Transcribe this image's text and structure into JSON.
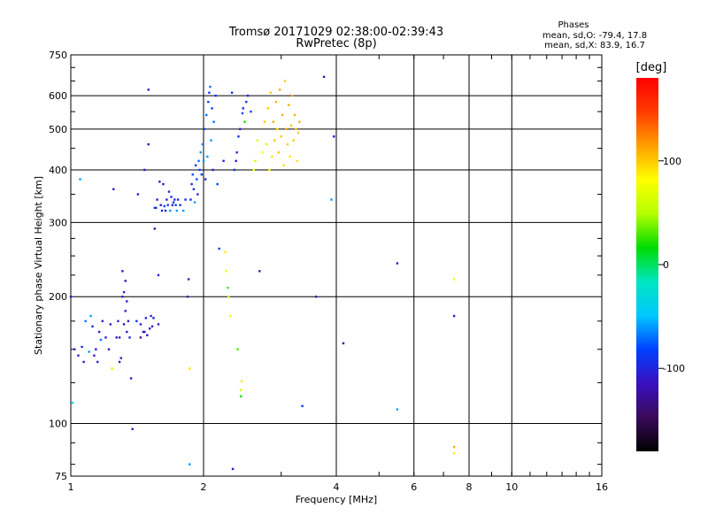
{
  "chart_data": {
    "type": "scatter",
    "title": "Tromsø 20171029 02:38:00-02:39:43",
    "subtitle": "RwPretec (8p)",
    "xlabel": "Frequency [MHz]",
    "ylabel": "Stationary phase Virtual Height [km]",
    "x_scale": "log",
    "y_scale": "log",
    "xlim": [
      1,
      16
    ],
    "ylim": [
      75,
      750
    ],
    "x_ticks": [
      1,
      2,
      4,
      6,
      8,
      10,
      16
    ],
    "y_ticks": [
      75,
      100,
      200,
      300,
      400,
      500,
      600,
      750
    ],
    "x_major_grid": [
      2,
      4,
      6,
      8,
      10
    ],
    "y_major_grid": [
      100,
      200,
      300,
      400,
      500,
      600
    ],
    "grid": true,
    "stats": {
      "title": "Phases",
      "line_o": "mean, sd,O: -79.4, 17.8",
      "line_x": "mean, sd,X: 83.9, 16.7"
    },
    "colorbar": {
      "label": "[deg]",
      "range": [
        -180,
        180
      ],
      "ticks": [
        100,
        0,
        -100
      ],
      "stops": [
        "#000000",
        "#3a0a5a",
        "#3a10c0",
        "#0040ff",
        "#00c8ff",
        "#00e6c0",
        "#00dc00",
        "#b4ff00",
        "#ffff00",
        "#ffa000",
        "#ff3c00",
        "#ff0000"
      ]
    },
    "series": [
      {
        "color_by": "phase",
        "points": [
          [
            1.0,
            200,
            -110
          ],
          [
            1.01,
            112,
            -30
          ],
          [
            1.02,
            150,
            -105
          ],
          [
            1.04,
            145,
            -110
          ],
          [
            1.06,
            152,
            -100
          ],
          [
            1.07,
            140,
            -110
          ],
          [
            1.05,
            380,
            -60
          ],
          [
            1.08,
            175,
            -70
          ],
          [
            1.1,
            148,
            -60
          ],
          [
            1.11,
            180,
            -60
          ],
          [
            1.12,
            170,
            -100
          ],
          [
            1.13,
            145,
            -110
          ],
          [
            1.14,
            150,
            -105
          ],
          [
            1.15,
            140,
            -100
          ],
          [
            1.16,
            165,
            -110
          ],
          [
            1.17,
            158,
            -70
          ],
          [
            1.18,
            175,
            -110
          ],
          [
            1.2,
            160,
            -105
          ],
          [
            1.22,
            150,
            -110
          ],
          [
            1.23,
            172,
            -110
          ],
          [
            1.24,
            135,
            60
          ],
          [
            1.25,
            360,
            -110
          ],
          [
            1.27,
            160,
            -110
          ],
          [
            1.28,
            175,
            -100
          ],
          [
            1.29,
            160,
            -110
          ],
          [
            1.29,
            140,
            -110
          ],
          [
            1.3,
            143,
            -105
          ],
          [
            1.31,
            200,
            -110
          ],
          [
            1.31,
            230,
            -105
          ],
          [
            1.32,
            205,
            -100
          ],
          [
            1.32,
            172,
            -110
          ],
          [
            1.33,
            185,
            -100
          ],
          [
            1.33,
            218,
            -110
          ],
          [
            1.34,
            165,
            -110
          ],
          [
            1.34,
            195,
            -105
          ],
          [
            1.35,
            175,
            -110
          ],
          [
            1.36,
            160,
            -100
          ],
          [
            1.37,
            128,
            -110
          ],
          [
            1.38,
            97,
            -120
          ],
          [
            1.41,
            175,
            -90
          ],
          [
            1.42,
            350,
            -110
          ],
          [
            1.44,
            160,
            -110
          ],
          [
            1.44,
            172,
            -105
          ],
          [
            1.46,
            165,
            -110
          ],
          [
            1.47,
            400,
            -105
          ],
          [
            1.47,
            165,
            -105
          ],
          [
            1.48,
            178,
            -100
          ],
          [
            1.49,
            162,
            -110
          ],
          [
            1.5,
            460,
            -120
          ],
          [
            1.5,
            620,
            -110
          ],
          [
            1.51,
            168,
            -110
          ],
          [
            1.52,
            180,
            -100
          ],
          [
            1.53,
            170,
            -110
          ],
          [
            1.54,
            178,
            -105
          ],
          [
            1.55,
            290,
            -120
          ],
          [
            1.55,
            325,
            -80
          ],
          [
            1.56,
            325,
            -100
          ],
          [
            1.57,
            340,
            -110
          ],
          [
            1.58,
            172,
            -110
          ],
          [
            1.58,
            225,
            -105
          ],
          [
            1.59,
            375,
            -110
          ],
          [
            1.6,
            330,
            -110
          ],
          [
            1.61,
            320,
            -100
          ],
          [
            1.62,
            370,
            -110
          ],
          [
            1.63,
            328,
            -80
          ],
          [
            1.64,
            320,
            -100
          ],
          [
            1.65,
            340,
            -110
          ],
          [
            1.66,
            330,
            -90
          ],
          [
            1.67,
            355,
            -100
          ],
          [
            1.68,
            320,
            -60
          ],
          [
            1.69,
            345,
            -100
          ],
          [
            1.7,
            330,
            -110
          ],
          [
            1.71,
            335,
            -90
          ],
          [
            1.72,
            340,
            -100
          ],
          [
            1.73,
            330,
            -80
          ],
          [
            1.74,
            320,
            -60
          ],
          [
            1.75,
            340,
            -100
          ],
          [
            1.77,
            330,
            -90
          ],
          [
            1.8,
            320,
            -60
          ],
          [
            1.82,
            340,
            -100
          ],
          [
            1.84,
            200,
            -110
          ],
          [
            1.85,
            220,
            -105
          ],
          [
            1.86,
            135,
            90
          ],
          [
            1.86,
            80,
            -60
          ],
          [
            1.87,
            340,
            -90
          ],
          [
            1.88,
            370,
            -100
          ],
          [
            1.89,
            390,
            -80
          ],
          [
            1.9,
            360,
            -100
          ],
          [
            1.91,
            335,
            -60
          ],
          [
            1.92,
            410,
            -90
          ],
          [
            1.93,
            380,
            -80
          ],
          [
            1.94,
            350,
            -100
          ],
          [
            1.95,
            420,
            -70
          ],
          [
            1.96,
            400,
            -80
          ],
          [
            1.97,
            440,
            -60
          ],
          [
            1.98,
            390,
            -90
          ],
          [
            1.99,
            460,
            -70
          ],
          [
            2.0,
            420,
            -60
          ],
          [
            2.01,
            500,
            -80
          ],
          [
            2.02,
            380,
            -100
          ],
          [
            2.03,
            540,
            -70
          ],
          [
            2.04,
            430,
            -60
          ],
          [
            2.05,
            580,
            -80
          ],
          [
            2.06,
            610,
            -90
          ],
          [
            2.07,
            630,
            -70
          ],
          [
            2.08,
            470,
            -60
          ],
          [
            2.09,
            560,
            -80
          ],
          [
            2.1,
            400,
            -100
          ],
          [
            2.11,
            520,
            -70
          ],
          [
            2.13,
            600,
            -90
          ],
          [
            2.15,
            370,
            -80
          ],
          [
            2.17,
            260,
            -80
          ],
          [
            2.22,
            420,
            -100
          ],
          [
            2.24,
            255,
            90
          ],
          [
            2.25,
            230,
            80
          ],
          [
            2.27,
            210,
            30
          ],
          [
            2.28,
            200,
            60
          ],
          [
            2.3,
            180,
            80
          ],
          [
            2.32,
            610,
            -90
          ],
          [
            2.33,
            78,
            -110
          ],
          [
            2.35,
            400,
            -90
          ],
          [
            2.37,
            420,
            -110
          ],
          [
            2.38,
            440,
            -100
          ],
          [
            2.39,
            150,
            30
          ],
          [
            2.4,
            480,
            -90
          ],
          [
            2.42,
            500,
            -100
          ],
          [
            2.43,
            120,
            60
          ],
          [
            2.43,
            116,
            20
          ],
          [
            2.44,
            126,
            90
          ],
          [
            2.45,
            545,
            -80
          ],
          [
            2.46,
            560,
            -100
          ],
          [
            2.48,
            520,
            20
          ],
          [
            2.5,
            580,
            -90
          ],
          [
            2.52,
            600,
            -100
          ],
          [
            2.56,
            550,
            -80
          ],
          [
            2.6,
            400,
            80
          ],
          [
            2.62,
            420,
            60
          ],
          [
            2.65,
            470,
            70
          ],
          [
            2.68,
            230,
            -120
          ],
          [
            2.72,
            440,
            80
          ],
          [
            2.75,
            520,
            100
          ],
          [
            2.78,
            460,
            90
          ],
          [
            2.8,
            560,
            100
          ],
          [
            2.82,
            400,
            80
          ],
          [
            2.84,
            610,
            100
          ],
          [
            2.86,
            430,
            90
          ],
          [
            2.88,
            520,
            110
          ],
          [
            2.9,
            470,
            100
          ],
          [
            2.92,
            580,
            110
          ],
          [
            2.94,
            500,
            90
          ],
          [
            2.96,
            440,
            100
          ],
          [
            2.98,
            620,
            110
          ],
          [
            3.0,
            480,
            100
          ],
          [
            3.02,
            540,
            110
          ],
          [
            3.04,
            410,
            90
          ],
          [
            3.06,
            650,
            100
          ],
          [
            3.08,
            500,
            110
          ],
          [
            3.1,
            460,
            100
          ],
          [
            3.12,
            570,
            110
          ],
          [
            3.14,
            430,
            90
          ],
          [
            3.16,
            510,
            100
          ],
          [
            3.18,
            600,
            110
          ],
          [
            3.2,
            470,
            100
          ],
          [
            3.22,
            540,
            110
          ],
          [
            3.24,
            500,
            100
          ],
          [
            3.26,
            420,
            90
          ],
          [
            3.28,
            490,
            100
          ],
          [
            3.3,
            520,
            110
          ],
          [
            3.35,
            110,
            -90
          ],
          [
            3.6,
            200,
            -110
          ],
          [
            3.75,
            665,
            -120
          ],
          [
            3.9,
            340,
            -60
          ],
          [
            3.95,
            480,
            -110
          ],
          [
            4.15,
            155,
            -130
          ],
          [
            5.5,
            240,
            -110
          ],
          [
            5.5,
            108,
            -60
          ],
          [
            7.4,
            220,
            80
          ],
          [
            7.4,
            180,
            -110
          ],
          [
            7.4,
            88,
            110
          ],
          [
            7.4,
            85,
            90
          ]
        ]
      }
    ]
  }
}
